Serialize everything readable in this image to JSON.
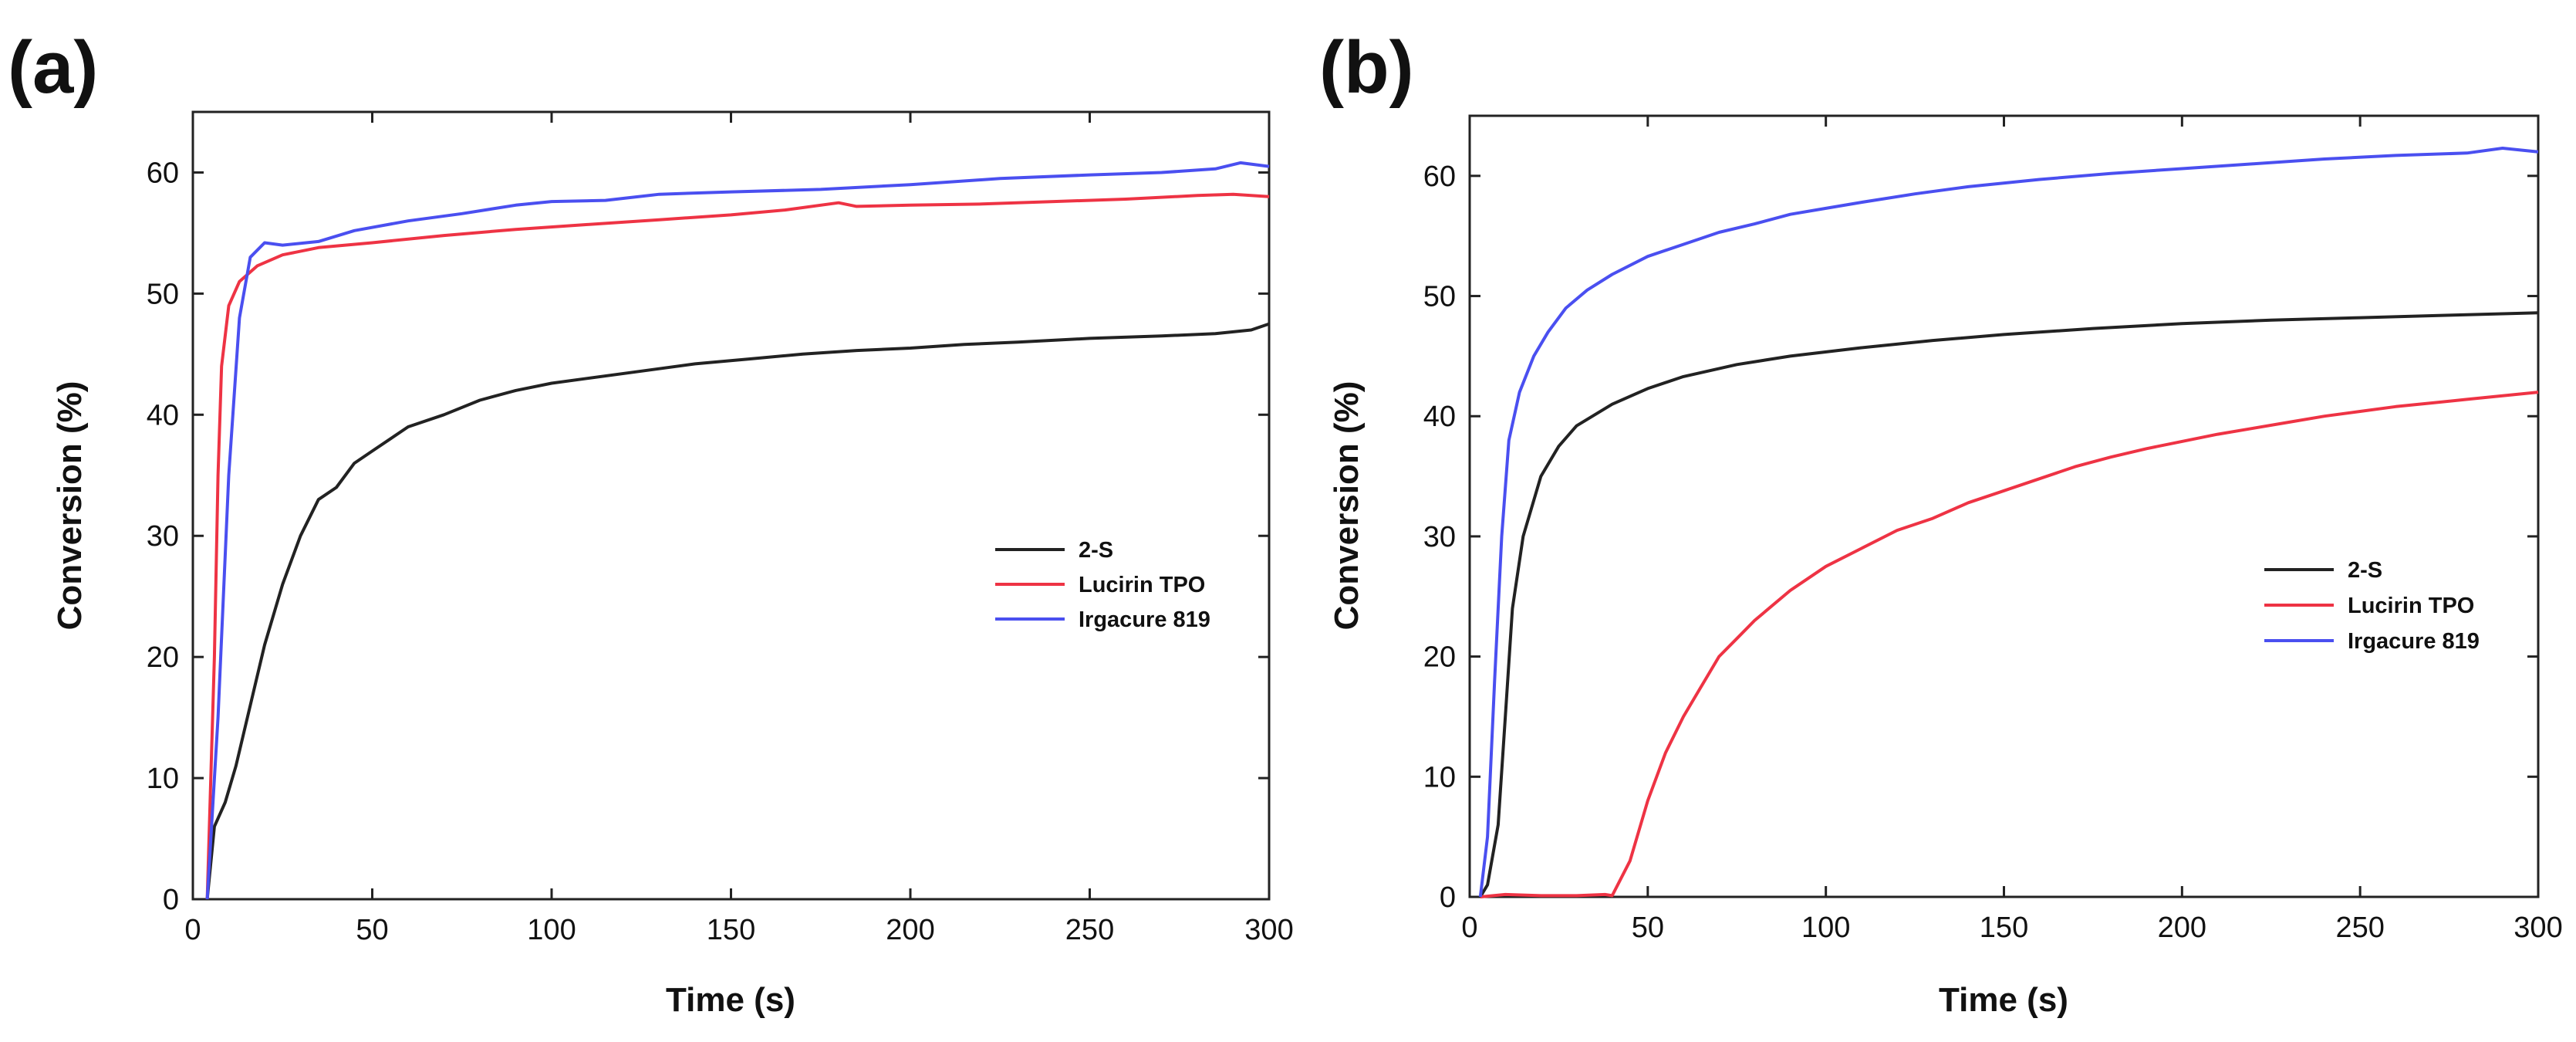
{
  "chart_data": [
    {
      "type": "line",
      "panel_label": "(a)",
      "xlabel": "Time (s)",
      "ylabel": "Conversion (%)",
      "xlim": [
        0,
        300
      ],
      "ylim": [
        0,
        65
      ],
      "xticks": [
        0,
        50,
        100,
        150,
        200,
        250,
        300
      ],
      "yticks": [
        0,
        10,
        20,
        30,
        40,
        50,
        60
      ],
      "legend_position": "center-right",
      "series": [
        {
          "name": "2-S",
          "color": "#222222",
          "points": [
            [
              4,
              0
            ],
            [
              6,
              6
            ],
            [
              9,
              8
            ],
            [
              12,
              11
            ],
            [
              16,
              16
            ],
            [
              20,
              21
            ],
            [
              25,
              26
            ],
            [
              30,
              30
            ],
            [
              35,
              33
            ],
            [
              40,
              34
            ],
            [
              45,
              36
            ],
            [
              50,
              37
            ],
            [
              55,
              38
            ],
            [
              60,
              39
            ],
            [
              70,
              40
            ],
            [
              80,
              41.2
            ],
            [
              90,
              42
            ],
            [
              100,
              42.6
            ],
            [
              110,
              43
            ],
            [
              125,
              43.6
            ],
            [
              140,
              44.2
            ],
            [
              155,
              44.6
            ],
            [
              170,
              45
            ],
            [
              185,
              45.3
            ],
            [
              200,
              45.5
            ],
            [
              215,
              45.8
            ],
            [
              230,
              46
            ],
            [
              250,
              46.3
            ],
            [
              270,
              46.5
            ],
            [
              285,
              46.7
            ],
            [
              295,
              47
            ],
            [
              300,
              47.5
            ]
          ]
        },
        {
          "name": "Lucirin TPO",
          "color": "#ee3344",
          "points": [
            [
              4,
              0
            ],
            [
              6,
              20
            ],
            [
              7,
              35
            ],
            [
              8,
              44
            ],
            [
              10,
              49
            ],
            [
              13,
              51
            ],
            [
              18,
              52.3
            ],
            [
              25,
              53.2
            ],
            [
              35,
              53.8
            ],
            [
              50,
              54.2
            ],
            [
              70,
              54.8
            ],
            [
              90,
              55.3
            ],
            [
              110,
              55.7
            ],
            [
              130,
              56.1
            ],
            [
              150,
              56.5
            ],
            [
              165,
              56.9
            ],
            [
              180,
              57.5
            ],
            [
              185,
              57.2
            ],
            [
              200,
              57.3
            ],
            [
              220,
              57.4
            ],
            [
              240,
              57.6
            ],
            [
              260,
              57.8
            ],
            [
              280,
              58.1
            ],
            [
              290,
              58.2
            ],
            [
              300,
              58
            ]
          ]
        },
        {
          "name": "Irgacure 819",
          "color": "#4a4ff0",
          "points": [
            [
              4,
              0
            ],
            [
              7,
              15
            ],
            [
              10,
              35
            ],
            [
              13,
              48
            ],
            [
              16,
              53
            ],
            [
              20,
              54.2
            ],
            [
              25,
              54
            ],
            [
              35,
              54.3
            ],
            [
              45,
              55.2
            ],
            [
              60,
              56
            ],
            [
              75,
              56.6
            ],
            [
              90,
              57.3
            ],
            [
              100,
              57.6
            ],
            [
              115,
              57.7
            ],
            [
              130,
              58.2
            ],
            [
              150,
              58.4
            ],
            [
              175,
              58.6
            ],
            [
              200,
              59
            ],
            [
              225,
              59.5
            ],
            [
              250,
              59.8
            ],
            [
              270,
              60
            ],
            [
              285,
              60.3
            ],
            [
              292,
              60.8
            ],
            [
              300,
              60.5
            ]
          ]
        }
      ]
    },
    {
      "type": "line",
      "panel_label": "(b)",
      "xlabel": "Time (s)",
      "ylabel": "Conversion (%)",
      "xlim": [
        0,
        300
      ],
      "ylim": [
        0,
        65
      ],
      "xticks": [
        0,
        50,
        100,
        150,
        200,
        250,
        300
      ],
      "yticks": [
        0,
        10,
        20,
        30,
        40,
        50,
        60
      ],
      "legend_position": "center-right",
      "series": [
        {
          "name": "2-S",
          "color": "#222222",
          "points": [
            [
              3,
              0
            ],
            [
              5,
              1
            ],
            [
              8,
              6
            ],
            [
              10,
              15
            ],
            [
              12,
              24
            ],
            [
              15,
              30
            ],
            [
              20,
              35
            ],
            [
              25,
              37.5
            ],
            [
              30,
              39.2
            ],
            [
              40,
              41
            ],
            [
              50,
              42.3
            ],
            [
              60,
              43.3
            ],
            [
              75,
              44.3
            ],
            [
              90,
              45
            ],
            [
              110,
              45.7
            ],
            [
              130,
              46.3
            ],
            [
              150,
              46.8
            ],
            [
              175,
              47.3
            ],
            [
              200,
              47.7
            ],
            [
              225,
              48
            ],
            [
              250,
              48.2
            ],
            [
              275,
              48.4
            ],
            [
              300,
              48.6
            ]
          ]
        },
        {
          "name": "Lucirin TPO",
          "color": "#ee3344",
          "points": [
            [
              3,
              0
            ],
            [
              10,
              0.2
            ],
            [
              20,
              0.1
            ],
            [
              30,
              0.1
            ],
            [
              38,
              0.2
            ],
            [
              40,
              0.1
            ],
            [
              45,
              3
            ],
            [
              50,
              8
            ],
            [
              55,
              12
            ],
            [
              60,
              15
            ],
            [
              65,
              17.5
            ],
            [
              70,
              20
            ],
            [
              75,
              21.5
            ],
            [
              80,
              23
            ],
            [
              90,
              25.5
            ],
            [
              100,
              27.5
            ],
            [
              110,
              29
            ],
            [
              120,
              30.5
            ],
            [
              130,
              31.5
            ],
            [
              140,
              32.8
            ],
            [
              150,
              33.8
            ],
            [
              160,
              34.8
            ],
            [
              170,
              35.8
            ],
            [
              180,
              36.6
            ],
            [
              190,
              37.3
            ],
            [
              200,
              37.9
            ],
            [
              210,
              38.5
            ],
            [
              220,
              39
            ],
            [
              230,
              39.5
            ],
            [
              240,
              40
            ],
            [
              250,
              40.4
            ],
            [
              260,
              40.8
            ],
            [
              270,
              41.1
            ],
            [
              280,
              41.4
            ],
            [
              290,
              41.7
            ],
            [
              300,
              42
            ]
          ]
        },
        {
          "name": "Irgacure 819",
          "color": "#4a4ff0",
          "points": [
            [
              3,
              0
            ],
            [
              5,
              5
            ],
            [
              7,
              18
            ],
            [
              9,
              30
            ],
            [
              11,
              38
            ],
            [
              14,
              42
            ],
            [
              18,
              45
            ],
            [
              22,
              47
            ],
            [
              27,
              49
            ],
            [
              33,
              50.5
            ],
            [
              40,
              51.8
            ],
            [
              50,
              53.3
            ],
            [
              60,
              54.3
            ],
            [
              70,
              55.3
            ],
            [
              80,
              56
            ],
            [
              90,
              56.8
            ],
            [
              100,
              57.3
            ],
            [
              110,
              57.8
            ],
            [
              125,
              58.5
            ],
            [
              140,
              59.1
            ],
            [
              160,
              59.7
            ],
            [
              180,
              60.2
            ],
            [
              200,
              60.6
            ],
            [
              220,
              61
            ],
            [
              240,
              61.4
            ],
            [
              260,
              61.7
            ],
            [
              280,
              61.9
            ],
            [
              290,
              62.3
            ],
            [
              300,
              62
            ]
          ]
        }
      ]
    }
  ]
}
